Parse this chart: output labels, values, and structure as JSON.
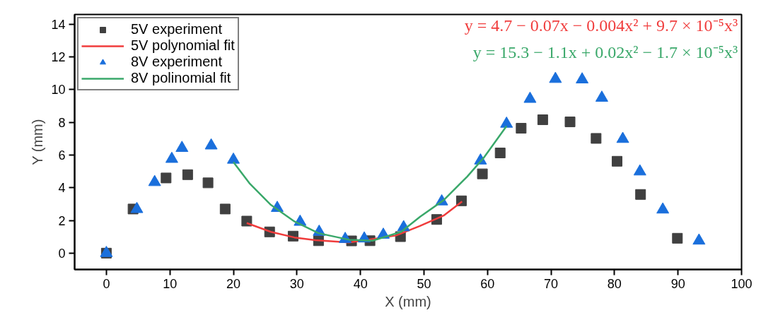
{
  "chart_data": {
    "type": "scatter",
    "xlabel": "X (mm)",
    "ylabel": "Y (mm)",
    "xlim": [
      -5,
      100
    ],
    "ylim": [
      -1,
      14.6
    ],
    "xticks": [
      0,
      10,
      20,
      30,
      40,
      50,
      60,
      70,
      80,
      90,
      100
    ],
    "yticks": [
      0,
      2,
      4,
      6,
      8,
      10,
      12,
      14
    ],
    "grid": false,
    "legend": "top left",
    "series": [
      {
        "name": "5V experiment",
        "type": "scatter",
        "marker": "square",
        "color": "#404040",
        "x": [
          0,
          4.2,
          9.4,
          12.8,
          16.0,
          18.7,
          22.1,
          25.7,
          29.4,
          33.4,
          38.6,
          41.5,
          46.3,
          52.0,
          55.9,
          59.2,
          62.0,
          65.3,
          68.7,
          73.0,
          77.1,
          80.4,
          84.1,
          89.9
        ],
        "values": [
          0,
          2.7,
          4.6,
          4.8,
          4.3,
          2.7,
          1.96,
          1.3,
          1.04,
          0.76,
          0.75,
          0.76,
          1.01,
          2.06,
          3.2,
          4.85,
          6.13,
          7.64,
          8.16,
          8.03,
          7.02,
          5.62,
          3.59,
          0.91
        ]
      },
      {
        "name": "5V polynomial fit",
        "type": "line",
        "color": "#f03c3c",
        "x": [
          22.1,
          25.9,
          29.6,
          32.9,
          38.2,
          45.6,
          49.3,
          53.1,
          56.0
        ],
        "values": [
          1.84,
          1.3,
          0.96,
          0.79,
          0.65,
          1.08,
          1.65,
          2.3,
          3.16
        ]
      },
      {
        "name": "8V experiment",
        "type": "scatter",
        "marker": "triangle",
        "color": "#1a6fdc",
        "x": [
          0,
          4.8,
          7.6,
          10.3,
          11.9,
          16.5,
          20.0,
          26.9,
          30.5,
          33.5,
          37.6,
          40.6,
          43.6,
          46.8,
          52.8,
          58.9,
          63.0,
          66.7,
          70.7,
          74.9,
          78.0,
          81.3,
          84.0,
          87.6,
          93.3
        ],
        "values": [
          0,
          2.69,
          4.34,
          5.76,
          6.43,
          6.58,
          5.71,
          2.76,
          1.91,
          1.3,
          0.86,
          0.89,
          1.12,
          1.58,
          3.16,
          5.66,
          7.91,
          9.43,
          10.65,
          10.62,
          9.5,
          6.98,
          4.99,
          2.66,
          0.76
        ]
      },
      {
        "name": "8V polinomial fit",
        "type": "line",
        "color": "#3aa86a",
        "x": [
          20.0,
          22.6,
          25.9,
          29.6,
          33.4,
          38.2,
          41.9,
          46.4,
          49.4,
          53.1,
          56.8,
          59.4,
          63.0
        ],
        "values": [
          5.57,
          4.24,
          2.95,
          1.94,
          1.22,
          0.82,
          0.76,
          1.3,
          2.23,
          3.24,
          4.68,
          5.83,
          7.77
        ]
      }
    ],
    "annotations": [
      "y = 4.7 − 0.07x − 0.004x² + 9.7 × 10⁻⁵x³",
      "y = 15.3 − 1.1x + 0.02x² − 1.7 × 10⁻⁵x³"
    ]
  }
}
